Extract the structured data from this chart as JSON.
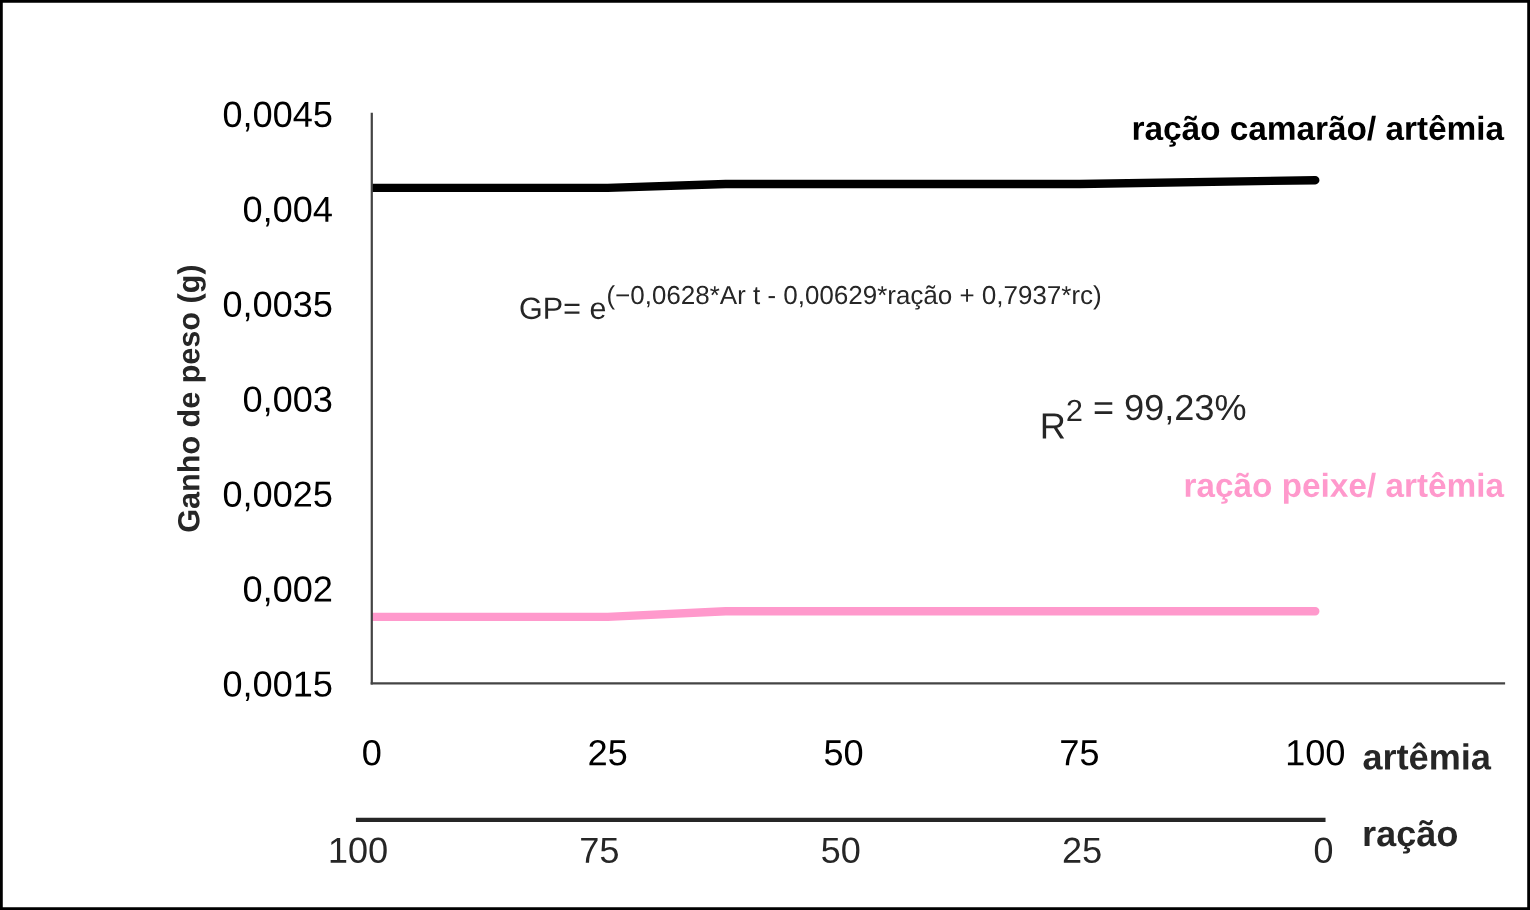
{
  "chart_data": {
    "type": "line",
    "ylabel": "Ganho de peso (g)",
    "xlabel": "artêmia",
    "x2label": "ração",
    "xlim": [
      0,
      120
    ],
    "xticks": [
      0,
      25,
      50,
      75,
      100
    ],
    "x2lim": [
      100,
      0
    ],
    "x2ticks": [
      100,
      75,
      50,
      25,
      0
    ],
    "ylim": [
      0.0015,
      0.0045
    ],
    "yticks": [
      {
        "value": 0.0015,
        "label": "0,0015"
      },
      {
        "value": 0.002,
        "label": "0,002"
      },
      {
        "value": 0.0025,
        "label": "0,0025"
      },
      {
        "value": 0.003,
        "label": "0,003"
      },
      {
        "value": 0.0035,
        "label": "0,0035"
      },
      {
        "value": 0.004,
        "label": "0,004"
      },
      {
        "value": 0.0045,
        "label": "0,0045"
      }
    ],
    "x": [
      0,
      25,
      37.5,
      75,
      100
    ],
    "series": [
      {
        "name": "ração camarão/ artêmia",
        "color": "#000000",
        "values": [
          0.00411,
          0.00411,
          0.00413,
          0.00413,
          0.00415
        ]
      },
      {
        "name": "ração peixe/ artêmia",
        "color": "#ff99cc",
        "values": [
          0.00185,
          0.00185,
          0.00188,
          0.00188,
          0.00188
        ]
      }
    ],
    "annotations": [
      "GP= e$^{(−0,0628*Ar t - 0,00629*ração + 0,7937*rc)}$",
      "R$^{2}$ = 99,23%"
    ],
    "grid": false,
    "legend": false
  }
}
